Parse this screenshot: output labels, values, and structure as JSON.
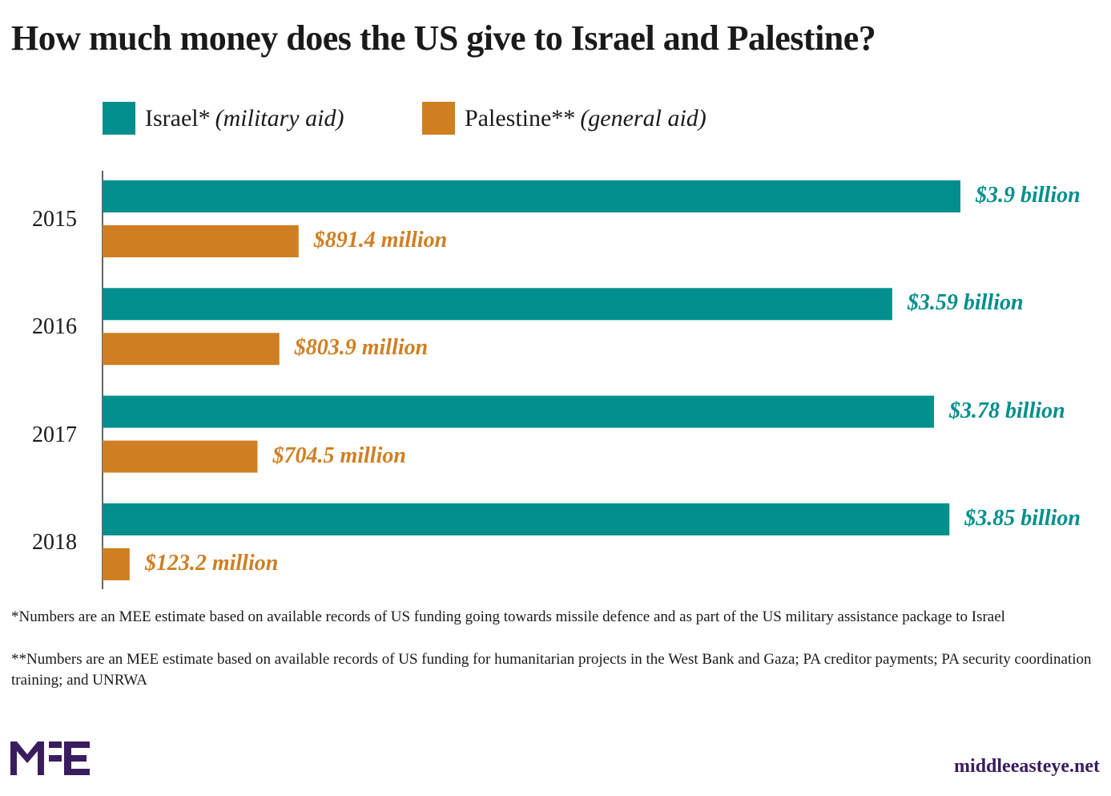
{
  "chart_data": {
    "type": "bar",
    "orientation": "horizontal",
    "title": "How much money does the US give to Israel and Palestine?",
    "categories": [
      "2015",
      "2016",
      "2017",
      "2018"
    ],
    "unit": "US$ billion",
    "xlim": [
      0,
      3.9
    ],
    "grid": false,
    "legend_placement": "top-left",
    "series": [
      {
        "name": "Israel*",
        "qualifier": "(military aid)",
        "color": "#008f8c",
        "values": [
          3.9,
          3.59,
          3.78,
          3.85
        ],
        "labels": [
          "$3.9 billion",
          "$3.59 billion",
          "$3.78 billion",
          "$3.85 billion"
        ]
      },
      {
        "name": "Palestine**",
        "qualifier": "(general aid)",
        "color": "#cf7f22",
        "values": [
          0.8914,
          0.8039,
          0.7045,
          0.1232
        ],
        "labels": [
          "$891.4 million",
          "$803.9 million",
          "$704.5 million",
          "$123.2 million"
        ]
      }
    ]
  },
  "notes": [
    "*Numbers are an MEE estimate based on available records of US funding going towards missile defence and as part of the US military assistance package to Israel",
    "**Numbers are an MEE estimate based on available records of US funding for humanitarian projects in the West Bank and Gaza; PA creditor payments; PA security coordination training; and UNRWA"
  ],
  "brand": {
    "logo_text": "MEE",
    "site": "middleeasteye.net",
    "color": "#3a1d5e"
  }
}
